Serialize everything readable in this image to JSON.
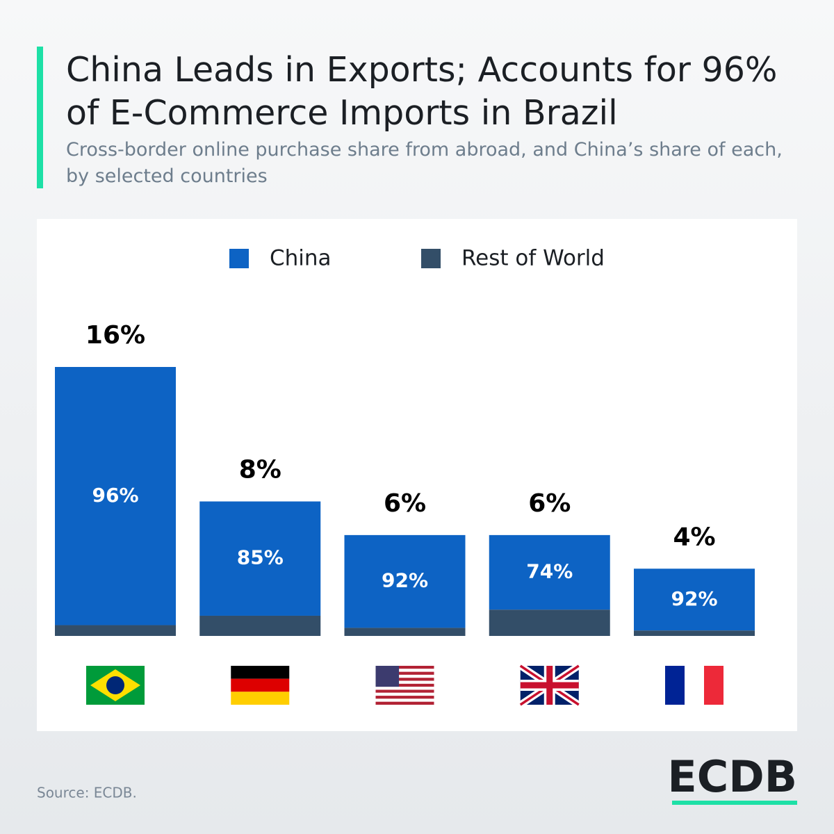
{
  "chart_data": {
    "type": "stacked_share_bar",
    "title": "China Leads in Exports; Accounts for 96% of E-Commerce Imports in Brazil",
    "subtitle": "Cross-border online purchase share from abroad, and China’s share of each, by selected countries",
    "categories": [
      null,
      null,
      null,
      null,
      null
    ],
    "totals": [
      16,
      8,
      6,
      6,
      4
    ],
    "total_labels": [
      "16%",
      "8%",
      "6%",
      "6%",
      "4%"
    ],
    "series": [
      {
        "name": "China",
        "color": "#0d63c4",
        "values": [
          96,
          85,
          92,
          74,
          92
        ],
        "value_labels": [
          "96%",
          "85%",
          "92%",
          "74%",
          "92%"
        ]
      },
      {
        "name": "Rest of World",
        "color": "#334e68"
      }
    ],
    "source": "Source: ECDB.",
    "logo": "ECDB"
  }
}
